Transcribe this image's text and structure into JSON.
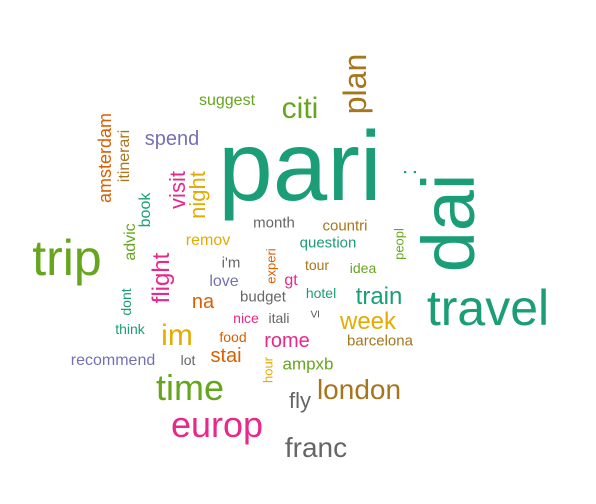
{
  "palette": {
    "teal": "#1b9e77",
    "orange": "#d95f02",
    "purple": "#7570b3",
    "magenta": "#e7298a",
    "green": "#66a61e",
    "gold": "#e6ab02",
    "brown": "#a6761d",
    "grey": "#666666"
  },
  "words": [
    {
      "id": "pari",
      "text": "pari",
      "color": "teal",
      "rot": 0
    },
    {
      "id": "dai",
      "text": "dai",
      "color": "teal",
      "rot": 90
    },
    {
      "id": "travel",
      "text": "travel",
      "color": "teal",
      "rot": 0
    },
    {
      "id": "trip",
      "text": "trip",
      "color": "green",
      "rot": 0
    },
    {
      "id": "time",
      "text": "time",
      "color": "green",
      "rot": 0
    },
    {
      "id": "europ",
      "text": "europ",
      "color": "magenta",
      "rot": 0
    },
    {
      "id": "plan",
      "text": "plan",
      "color": "brown",
      "rot": 90
    },
    {
      "id": "citi",
      "text": "citi",
      "color": "green",
      "rot": 0
    },
    {
      "id": "london",
      "text": "london",
      "color": "brown",
      "rot": 0
    },
    {
      "id": "franc",
      "text": "franc",
      "color": "grey",
      "rot": 0
    },
    {
      "id": "im",
      "text": "im",
      "color": "gold",
      "rot": 0
    },
    {
      "id": "train",
      "text": "train",
      "color": "teal",
      "rot": 0
    },
    {
      "id": "week",
      "text": "week",
      "color": "gold",
      "rot": 0
    },
    {
      "id": "flight",
      "text": "flight",
      "color": "magenta",
      "rot": 90
    },
    {
      "id": "visit",
      "text": "visit",
      "color": "magenta",
      "rot": 90
    },
    {
      "id": "night",
      "text": "night",
      "color": "gold",
      "rot": 90
    },
    {
      "id": "fly",
      "text": "fly",
      "color": "grey",
      "rot": 0
    },
    {
      "id": "rome",
      "text": "rome",
      "color": "magenta",
      "rot": 0
    },
    {
      "id": "stai",
      "text": "stai",
      "color": "orange",
      "rot": 0
    },
    {
      "id": "na",
      "text": "na",
      "color": "orange",
      "rot": 0
    },
    {
      "id": "spend",
      "text": "spend",
      "color": "purple",
      "rot": 0
    },
    {
      "id": "suggest",
      "text": "suggest",
      "color": "green",
      "rot": 0
    },
    {
      "id": "amsterdam",
      "text": "amsterdam",
      "color": "orange",
      "rot": 90
    },
    {
      "id": "itinerari",
      "text": "itinerari",
      "color": "brown",
      "rot": 90
    },
    {
      "id": "book",
      "text": "book",
      "color": "teal",
      "rot": 90
    },
    {
      "id": "advic",
      "text": "advic",
      "color": "green",
      "rot": 90
    },
    {
      "id": "dont",
      "text": "dont",
      "color": "teal",
      "rot": 90
    },
    {
      "id": "think",
      "text": "think",
      "color": "teal",
      "rot": 0
    },
    {
      "id": "recommend",
      "text": "recommend",
      "color": "purple",
      "rot": 0
    },
    {
      "id": "lot",
      "text": "lot",
      "color": "grey",
      "rot": 0
    },
    {
      "id": "remov",
      "text": "remov",
      "color": "gold",
      "rot": 0
    },
    {
      "id": "love",
      "text": "love",
      "color": "purple",
      "rot": 0
    },
    {
      "id": "month",
      "text": "month",
      "color": "grey",
      "rot": 0
    },
    {
      "id": "countri",
      "text": "countri",
      "color": "brown",
      "rot": 0
    },
    {
      "id": "question",
      "text": "question",
      "color": "teal",
      "rot": 0
    },
    {
      "id": "im2",
      "text": "i'm",
      "color": "grey",
      "rot": 0
    },
    {
      "id": "experi",
      "text": "experi",
      "color": "orange",
      "rot": 90
    },
    {
      "id": "gt",
      "text": "gt",
      "color": "magenta",
      "rot": 0
    },
    {
      "id": "tour",
      "text": "tour",
      "color": "brown",
      "rot": 0
    },
    {
      "id": "idea",
      "text": "idea",
      "color": "green",
      "rot": 0
    },
    {
      "id": "peopl",
      "text": "peopl",
      "color": "green",
      "rot": 90
    },
    {
      "id": "budget",
      "text": "budget",
      "color": "grey",
      "rot": 0
    },
    {
      "id": "hotel",
      "text": "hotel",
      "color": "teal",
      "rot": 0
    },
    {
      "id": "nice",
      "text": "nice",
      "color": "magenta",
      "rot": 0
    },
    {
      "id": "itali",
      "text": "itali",
      "color": "grey",
      "rot": 0
    },
    {
      "id": "le",
      "text": "≤",
      "color": "grey",
      "rot": 90
    },
    {
      "id": "food",
      "text": "food",
      "color": "orange",
      "rot": 0
    },
    {
      "id": "barcelona",
      "text": "barcelona",
      "color": "brown",
      "rot": 0
    },
    {
      "id": "hour",
      "text": "hour",
      "color": "gold",
      "rot": 90
    },
    {
      "id": "ampxb",
      "text": "ampxb",
      "color": "green",
      "rot": 0
    },
    {
      "id": "colon",
      "text": ":",
      "color": "teal",
      "rot": 90
    }
  ]
}
